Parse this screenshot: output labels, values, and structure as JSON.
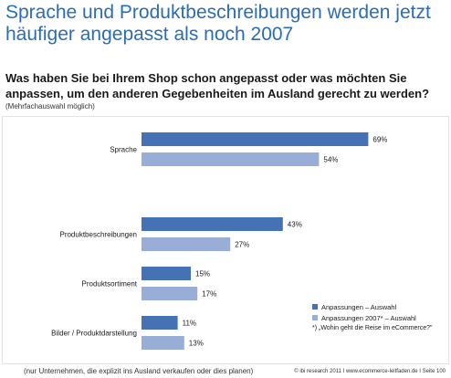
{
  "title": "Sprache und Produktbeschreibungen werden jetzt häufiger angepasst als noch 2007",
  "question": "Was haben Sie bei Ihrem Shop schon angepasst oder was möchten Sie anpassen, um den anderen Gegebenheiten im Ausland gerecht zu werden?",
  "subnote": "(Mehrfachauswahl möglich)",
  "footnote": "(nur Unternehmen, die explizit ins Ausland verkaufen oder dies planen)",
  "source": "© ibi research 2011 I www.ecommerce-leitfaden.de I Seite 100",
  "legend_note": "*) „Wohin geht die Reise im eCommerce?\"",
  "colors": {
    "title": "#2a6db5",
    "series_dark": "#4472b4",
    "series_light": "#98aed6"
  },
  "chart_data": {
    "type": "bar",
    "orientation": "horizontal",
    "categories": [
      "Sprache",
      "Produktbeschreibungen",
      "Produktsortiment",
      "Bilder / Produktdarstellung"
    ],
    "series": [
      {
        "name": "Anpassungen – Auswahl",
        "values": [
          69,
          43,
          15,
          11
        ],
        "labels": [
          "69%",
          "43%",
          "15%",
          "11%"
        ]
      },
      {
        "name": "Anpassungen 2007* – Auswahl",
        "values": [
          54,
          27,
          17,
          13
        ],
        "labels": [
          "54%",
          "27%",
          "17%",
          "13%"
        ]
      }
    ],
    "xlim": [
      0,
      100
    ],
    "unit": "%",
    "legend": "bottom-right"
  }
}
